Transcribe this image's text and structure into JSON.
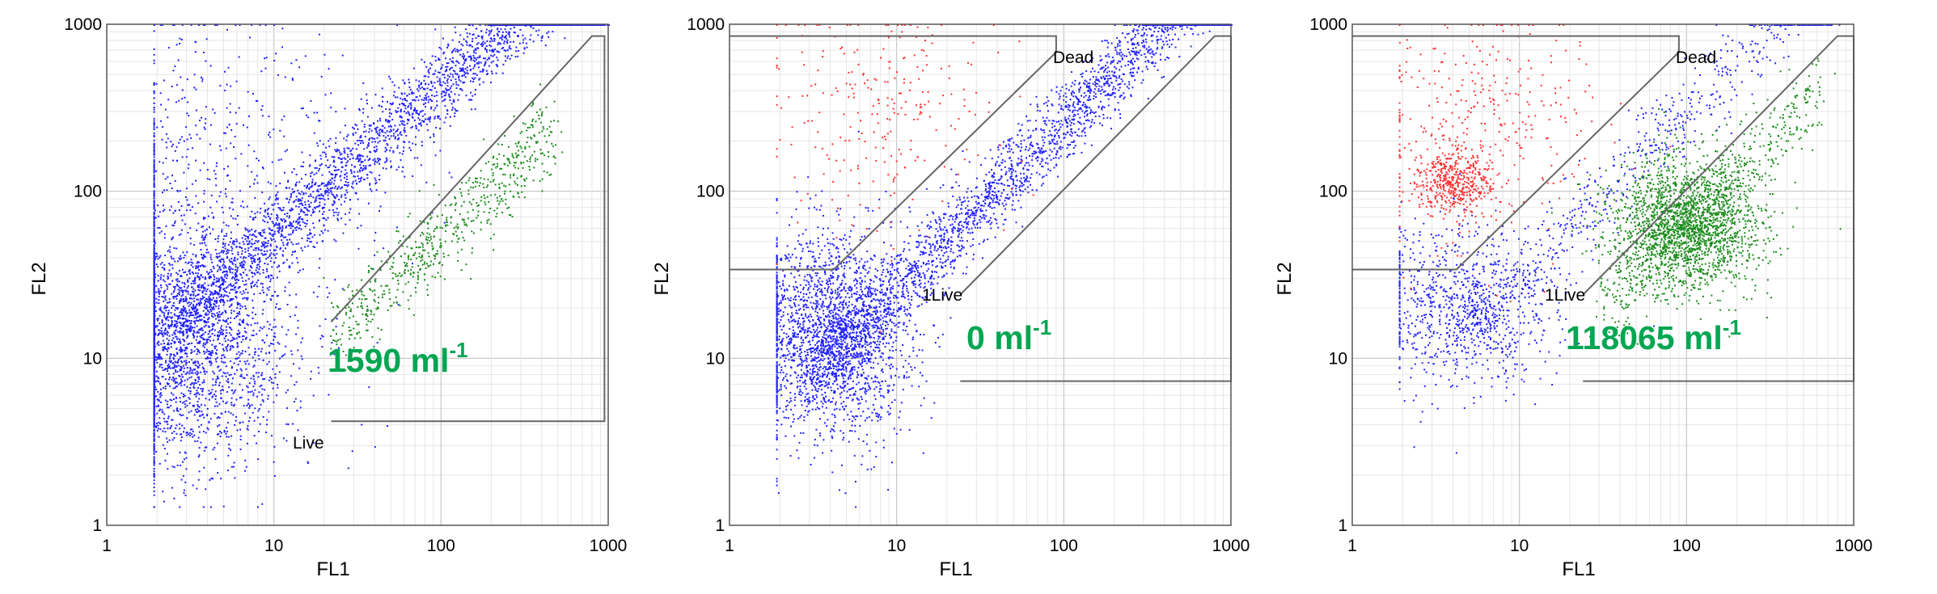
{
  "chart_data": [
    {
      "type": "scatter",
      "xlabel": "FL1",
      "ylabel": "FL2",
      "xscale": "log",
      "yscale": "log",
      "xlim": [
        1,
        1000
      ],
      "ylim": [
        1,
        1000
      ],
      "xticks": [
        "1",
        "10",
        "100",
        "1000"
      ],
      "yticks": [
        "1",
        "10",
        "100",
        "1000"
      ],
      "grid": true,
      "gates": [
        {
          "label": "Live",
          "points": [
            [
              22,
              16.5
            ],
            [
              800,
              850
            ],
            [
              950,
              850
            ],
            [
              950,
              4.2
            ],
            [
              22,
              4.2
            ]
          ]
        }
      ],
      "annotation": {
        "text": "1590 ml",
        "superscript": "-1"
      },
      "series": [
        {
          "color": "#2020ff",
          "center": [
            2.6,
            12
          ],
          "spread": [
            0.35,
            0.35
          ],
          "count": 2600
        },
        {
          "color": "#2020ff",
          "trend": {
            "x_range": [
              2.5,
              900
            ],
            "slope": 0.9,
            "y_at_x1": 7
          },
          "count": 2600
        },
        {
          "color": "#2020ff",
          "center": [
            4,
            120
          ],
          "spread": [
            0.5,
            0.5
          ],
          "count": 700
        },
        {
          "color": "#1a8c1a",
          "trend": {
            "x_range": [
              22,
              450
            ],
            "slope": 0.95,
            "y_at_x1": 0.7
          },
          "count": 650
        }
      ]
    },
    {
      "type": "scatter",
      "xlabel": "FL1",
      "ylabel": "FL2",
      "xscale": "log",
      "yscale": "log",
      "xlim": [
        1,
        1000
      ],
      "ylim": [
        1,
        1000
      ],
      "xticks": [
        "1",
        "10",
        "100",
        "1000"
      ],
      "yticks": [
        "1",
        "10",
        "100",
        "1000"
      ],
      "grid": true,
      "gates": [
        {
          "label": "Dead",
          "points": [
            [
              1,
              850
            ],
            [
              90,
              850
            ],
            [
              90,
              680
            ],
            [
              4.2,
              34
            ],
            [
              1,
              34
            ]
          ]
        },
        {
          "label": "1Live",
          "points": [
            [
              24,
              24
            ],
            [
              800,
              850
            ],
            [
              1000,
              850
            ],
            [
              1000,
              7.3
            ],
            [
              24,
              7.3
            ]
          ]
        }
      ],
      "annotation": {
        "text": "0 ml",
        "superscript": "-1"
      },
      "series": [
        {
          "color": "#2020ff",
          "center": [
            3.8,
            14
          ],
          "spread": [
            0.25,
            0.3
          ],
          "count": 2200
        },
        {
          "color": "#2020ff",
          "trend": {
            "x_range": [
              3.5,
              900
            ],
            "slope": 1.0,
            "y_at_x1": 2.6
          },
          "count": 2400
        },
        {
          "color": "#ff3030",
          "center": [
            8,
            300
          ],
          "spread": [
            0.35,
            0.35
          ],
          "count": 260
        }
      ]
    },
    {
      "type": "scatter",
      "xlabel": "FL1",
      "ylabel": "FL2",
      "xscale": "log",
      "yscale": "log",
      "xlim": [
        1,
        1000
      ],
      "ylim": [
        1,
        1000
      ],
      "xticks": [
        "1",
        "10",
        "100",
        "1000"
      ],
      "yticks": [
        "1",
        "10",
        "100",
        "1000"
      ],
      "grid": true,
      "gates": [
        {
          "label": "Dead",
          "points": [
            [
              1,
              850
            ],
            [
              90,
              850
            ],
            [
              90,
              680
            ],
            [
              4.2,
              34
            ],
            [
              1,
              34
            ]
          ]
        },
        {
          "label": "1Live",
          "points": [
            [
              24,
              24
            ],
            [
              800,
              850
            ],
            [
              1000,
              850
            ],
            [
              1000,
              7.3
            ],
            [
              24,
              7.3
            ]
          ]
        }
      ],
      "annotation": {
        "text": "118065 ml",
        "superscript": "-1"
      },
      "series": [
        {
          "color": "#2020ff",
          "center": [
            4.5,
            20
          ],
          "spread": [
            0.28,
            0.25
          ],
          "count": 900
        },
        {
          "color": "#2020ff",
          "trend": {
            "x_range": [
              5,
              700
            ],
            "slope": 1.0,
            "y_at_x1": 3
          },
          "count": 600
        },
        {
          "color": "#1a8c1a",
          "center": [
            100,
            63
          ],
          "spread": [
            0.22,
            0.2
          ],
          "count": 2000
        },
        {
          "color": "#1a8c1a",
          "trend": {
            "x_range": [
              30,
              600
            ],
            "slope": 1.0,
            "y_at_x1": 0.65
          },
          "count": 500
        },
        {
          "color": "#ff3030",
          "center": [
            4,
            115
          ],
          "spread": [
            0.12,
            0.1
          ],
          "count": 450
        },
        {
          "color": "#ff3030",
          "center": [
            6,
            250
          ],
          "spread": [
            0.35,
            0.35
          ],
          "count": 350
        }
      ]
    }
  ]
}
